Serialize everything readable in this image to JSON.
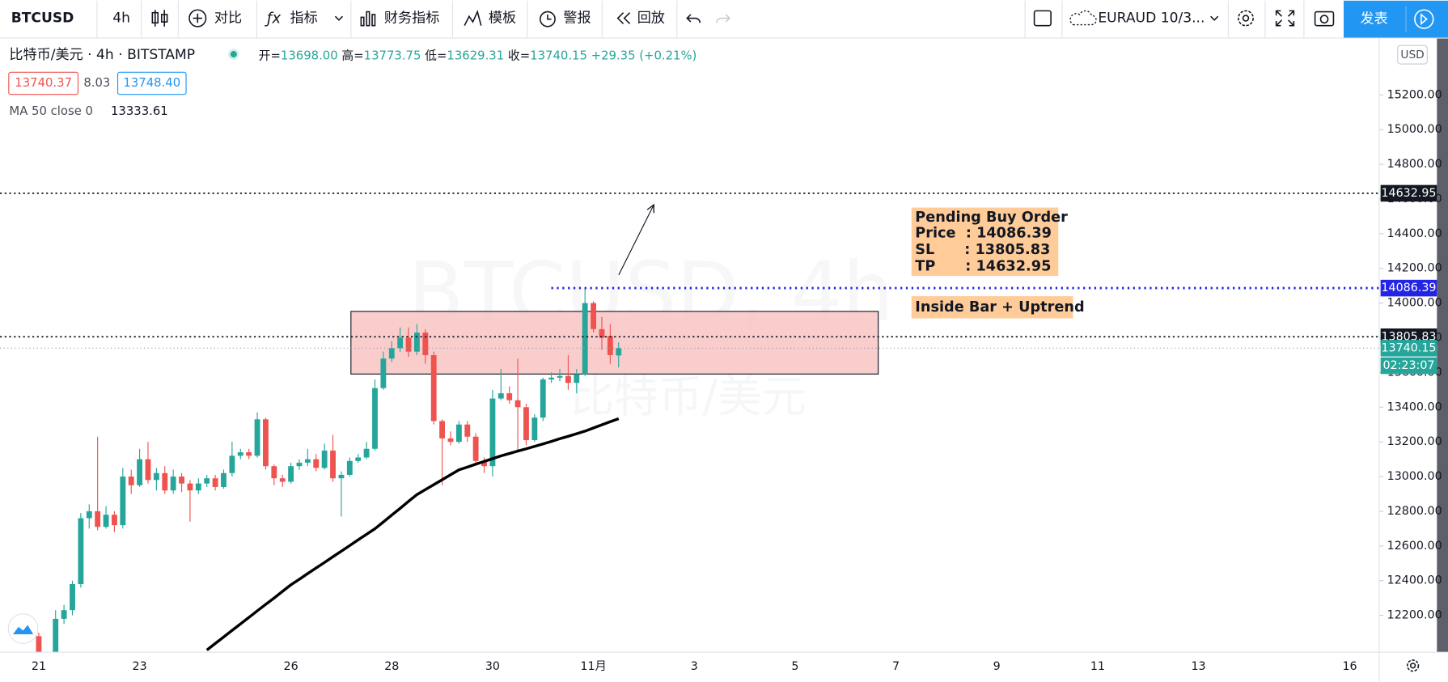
{
  "toolbar": {
    "symbol": "BTCUSD",
    "interval": "4h",
    "compare": "对比",
    "indicators": "指标",
    "financials": "财务指标",
    "templates": "模板",
    "alert": "警报",
    "replay": "回放",
    "watchlist": "EURAUD 10/3...",
    "publish": "发表"
  },
  "legend": {
    "title": "比特币/美元 · 4h · BITSTAMP",
    "ohlc": [
      {
        "label": "开=",
        "value": "13698.00"
      },
      {
        "label": "高=",
        "value": "13773.75"
      },
      {
        "label": "低=",
        "value": "13629.31"
      },
      {
        "label": "收=",
        "value": "13740.15"
      }
    ],
    "change": "+29.35 (+0.21%)",
    "bid": "13740.37",
    "spread": "8.03",
    "ask": "13748.40",
    "ma_label": "MA 50 close 0",
    "ma_value": "13333.61"
  },
  "chart_data": {
    "type": "candlestick",
    "currency": "USD",
    "watermark": {
      "symbol": "BTCUSD, 4h",
      "name": "比特币/美元"
    },
    "up_color": "#26a69a",
    "down_color": "#ef5350",
    "categories": [
      "21",
      null,
      null,
      null,
      null,
      null,
      null,
      null,
      null,
      null,
      null,
      null,
      "23",
      null,
      null,
      null,
      null,
      null,
      null,
      null,
      null,
      null,
      null,
      null,
      null,
      null,
      null,
      null,
      null,
      null,
      "26",
      null,
      null,
      null,
      null,
      null,
      null,
      null,
      null,
      null,
      null,
      null,
      "28",
      null,
      null,
      null,
      null,
      null,
      null,
      null,
      null,
      null,
      null,
      null,
      "30",
      null,
      null,
      null,
      null,
      null,
      null,
      null,
      null,
      null,
      null,
      null,
      "11月",
      null,
      null,
      null,
      null,
      null,
      null,
      null,
      null,
      null,
      null,
      null,
      "3",
      null,
      null,
      null,
      null,
      null,
      null,
      null,
      null,
      null,
      null,
      null,
      "5",
      null,
      null,
      null,
      null,
      null,
      null,
      null,
      null,
      null,
      null,
      null,
      "7",
      null,
      null,
      null,
      null,
      null,
      null,
      null,
      null,
      null,
      null,
      null,
      "9",
      null,
      null,
      null,
      null,
      null,
      null,
      null,
      null,
      null,
      null,
      null,
      "11",
      null,
      null,
      null,
      null,
      null,
      null,
      null,
      null,
      null,
      null,
      null,
      "13",
      null,
      null,
      null,
      null,
      null,
      null,
      null,
      null,
      null,
      null,
      null,
      null,
      null,
      null,
      null,
      null,
      null,
      "16",
      null,
      null,
      null
    ],
    "ohlc": [
      [
        12080,
        12100,
        11900,
        11950
      ],
      [
        11950,
        11990,
        11880,
        11930
      ],
      [
        11930,
        12230,
        11900,
        12180
      ],
      [
        12180,
        12260,
        12150,
        12230
      ],
      [
        12230,
        12400,
        12200,
        12380
      ],
      [
        12380,
        12790,
        12360,
        12760
      ],
      [
        12760,
        12840,
        12700,
        12800
      ],
      [
        12800,
        13230,
        12690,
        12710
      ],
      [
        12710,
        12830,
        12700,
        12780
      ],
      [
        12780,
        12800,
        12680,
        12720
      ],
      [
        12720,
        13050,
        12700,
        13000
      ],
      [
        13000,
        13040,
        12900,
        12950
      ],
      [
        12950,
        13160,
        12940,
        13100
      ],
      [
        13100,
        13200,
        12960,
        12980
      ],
      [
        12980,
        13050,
        12920,
        13020
      ],
      [
        13020,
        13060,
        12900,
        12920
      ],
      [
        12920,
        13040,
        12900,
        13000
      ],
      [
        13000,
        13020,
        12910,
        12960
      ],
      [
        12960,
        12980,
        12740,
        12920
      ],
      [
        12920,
        12990,
        12900,
        12960
      ],
      [
        12960,
        13010,
        12940,
        12990
      ],
      [
        12990,
        13010,
        12920,
        12940
      ],
      [
        12940,
        13040,
        12930,
        13020
      ],
      [
        13020,
        13200,
        13000,
        13120
      ],
      [
        13120,
        13160,
        13100,
        13140
      ],
      [
        13140,
        13160,
        13100,
        13120
      ],
      [
        13120,
        13370,
        13110,
        13330
      ],
      [
        13330,
        13340,
        13040,
        13060
      ],
      [
        13060,
        13070,
        12950,
        12990
      ],
      [
        12990,
        13010,
        12940,
        12970
      ],
      [
        12970,
        13080,
        12960,
        13060
      ],
      [
        13060,
        13100,
        13040,
        13080
      ],
      [
        13080,
        13160,
        13060,
        13100
      ],
      [
        13100,
        13130,
        13030,
        13050
      ],
      [
        13050,
        13190,
        13040,
        13150
      ],
      [
        13150,
        13240,
        12970,
        12990
      ],
      [
        12990,
        13030,
        12770,
        13010
      ],
      [
        13010,
        13110,
        13000,
        13090
      ],
      [
        13090,
        13130,
        13080,
        13110
      ],
      [
        13110,
        13200,
        13100,
        13160
      ],
      [
        13160,
        13560,
        13150,
        13510
      ],
      [
        13510,
        13720,
        13500,
        13680
      ],
      [
        13680,
        13780,
        13660,
        13740
      ],
      [
        13740,
        13860,
        13720,
        13800
      ],
      [
        13800,
        13860,
        13690,
        13720
      ],
      [
        13720,
        13880,
        13700,
        13830
      ],
      [
        13830,
        13850,
        13650,
        13700
      ],
      [
        13700,
        13720,
        13300,
        13320
      ],
      [
        13320,
        13330,
        12950,
        13220
      ],
      [
        13220,
        13260,
        13180,
        13200
      ],
      [
        13200,
        13320,
        13190,
        13300
      ],
      [
        13300,
        13320,
        13200,
        13230
      ],
      [
        13230,
        13250,
        13070,
        13090
      ],
      [
        13090,
        13110,
        13020,
        13060
      ],
      [
        13060,
        13500,
        13000,
        13450
      ],
      [
        13450,
        13620,
        13440,
        13480
      ],
      [
        13480,
        13520,
        13420,
        13440
      ],
      [
        13440,
        13680,
        13150,
        13400
      ],
      [
        13400,
        13420,
        13180,
        13210
      ],
      [
        13210,
        13360,
        13200,
        13340
      ],
      [
        13340,
        13570,
        13320,
        13560
      ],
      [
        13560,
        13600,
        13540,
        13570
      ],
      [
        13570,
        13620,
        13550,
        13580
      ],
      [
        13580,
        13700,
        13500,
        13540
      ],
      [
        13540,
        13620,
        13480,
        13590
      ],
      [
        13590,
        14086.39,
        13580,
        14000
      ],
      [
        14000,
        14010,
        13830,
        13850
      ],
      [
        13850,
        13920,
        13730,
        13800
      ],
      [
        13810,
        13880,
        13650,
        13700
      ],
      [
        13698,
        13773.75,
        13629.31,
        13740.15
      ],
      null,
      null,
      null,
      null,
      null,
      null,
      null,
      null,
      null,
      null,
      null,
      null,
      null,
      null,
      null,
      null,
      null,
      null,
      null,
      null,
      null,
      null,
      null,
      null,
      null,
      null,
      null,
      null,
      null,
      null,
      null,
      null,
      null,
      null,
      null,
      null,
      null,
      null,
      null,
      null,
      null,
      null,
      null,
      null,
      null,
      null,
      null,
      null,
      null,
      null,
      null,
      null,
      null,
      null,
      null,
      null,
      null,
      null,
      null,
      null,
      null,
      null,
      null,
      null,
      null,
      null,
      null,
      null,
      null,
      null,
      null,
      null,
      null,
      null,
      null,
      null,
      null,
      null,
      null,
      null,
      null,
      null,
      null,
      null,
      null,
      null,
      null,
      null,
      null,
      null
    ],
    "ma": {
      "color": "#000000",
      "values": [
        null,
        null,
        null,
        null,
        null,
        null,
        null,
        null,
        null,
        null,
        null,
        null,
        null,
        null,
        null,
        null,
        null,
        null,
        null,
        null,
        12000,
        12038,
        12075,
        12113,
        12150,
        12188,
        12226,
        12263,
        12300,
        12338,
        12376,
        12408,
        12441,
        12473,
        12505,
        12538,
        12570,
        12602,
        12635,
        12667,
        12699,
        12738,
        12778,
        12817,
        12857,
        12896,
        12925,
        12953,
        12982,
        13010,
        13039,
        13055,
        13071,
        13087,
        13103,
        13119,
        13133,
        13147,
        13160,
        13174,
        13188,
        13203,
        13218,
        13232,
        13247,
        13262,
        13280,
        13298,
        13316,
        13333.61,
        null,
        null,
        null,
        null,
        null,
        null,
        null,
        null,
        null,
        null,
        null,
        null,
        null,
        null,
        null,
        null,
        null,
        null,
        null,
        null,
        null,
        null,
        null,
        null,
        null,
        null,
        null,
        null,
        null,
        null,
        null,
        null,
        null,
        null,
        null,
        null,
        null,
        null,
        null,
        null,
        null,
        null,
        null,
        null,
        null,
        null,
        null,
        null,
        null,
        null,
        null,
        null,
        null,
        null,
        null,
        null,
        null,
        null,
        null,
        null,
        null,
        null,
        null,
        null,
        null,
        null,
        null,
        null,
        null,
        null,
        null,
        null,
        null,
        null,
        null,
        null,
        null,
        null,
        null,
        null,
        null,
        null,
        null,
        null,
        null,
        null,
        null,
        null,
        null,
        null
      ]
    },
    "zone": {
      "top": 13952,
      "bottom": 13591,
      "color": "#f9c4c4"
    },
    "hlines": [
      {
        "value": 14632.95,
        "color": "#131722"
      },
      {
        "value": 14086.39,
        "color": "#2424e6"
      },
      {
        "value": 13805.83,
        "color": "#131722"
      },
      {
        "value": 13740.15,
        "color": "#26a69a"
      }
    ],
    "countdown": "02:23:07",
    "annotations": {
      "order": [
        "Pending Buy Order",
        "Price  : 14086.39",
        "SL      : 13805.83",
        "TP      : 14632.95"
      ],
      "pattern": "Inside Bar + Uptrend"
    },
    "ylim": [
      11990,
      15525
    ],
    "yticks": [
      {
        "value": 12200,
        "label": "12200.00"
      },
      {
        "value": 12400,
        "label": "12400.00"
      },
      {
        "value": 12600,
        "label": "12600.00"
      },
      {
        "value": 12800,
        "label": "12800.00"
      },
      {
        "value": 13000,
        "label": "13000.00"
      },
      {
        "value": 13200,
        "label": "13200.00"
      },
      {
        "value": 13400,
        "label": "13400.00"
      },
      {
        "value": 13600,
        "label": "13600.00"
      },
      {
        "value": 13800,
        "label": "13800.00"
      },
      {
        "value": 14000,
        "label": "14000.00"
      },
      {
        "value": 14200,
        "label": "14200.00"
      },
      {
        "value": 14400,
        "label": "14400.00"
      },
      {
        "value": 14600,
        "label": "14600.00"
      },
      {
        "value": 14800,
        "label": "14800.00"
      },
      {
        "value": 15000,
        "label": "15000.00"
      },
      {
        "value": 15200,
        "label": "15200.00"
      }
    ]
  }
}
